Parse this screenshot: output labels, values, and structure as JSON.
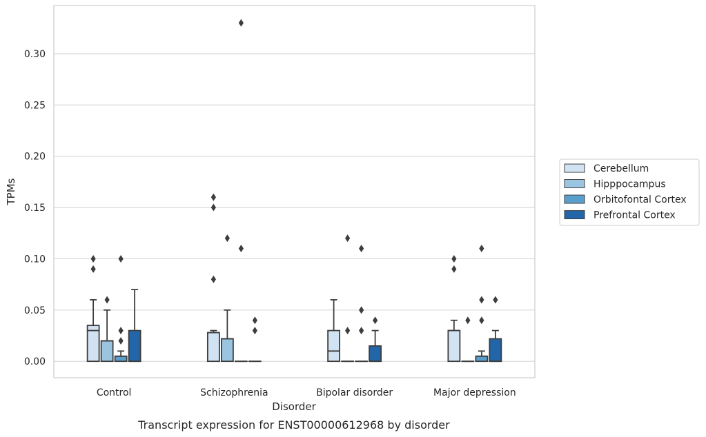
{
  "caption": "Transcript expression for ENST00000612968 by disorder",
  "chart_data": {
    "type": "boxplot",
    "xlabel": "Disorder",
    "ylabel": "TPMs",
    "ylim": [
      -0.016,
      0.347
    ],
    "yticks": [
      0.0,
      0.05,
      0.1,
      0.15,
      0.2,
      0.25,
      0.3
    ],
    "ytick_labels": [
      "0.00",
      "0.05",
      "0.10",
      "0.15",
      "0.20",
      "0.25",
      "0.30"
    ],
    "grid": "horizontal",
    "legend_position": "right",
    "categories": [
      "Control",
      "Schizophrenia",
      "Bipolar disorder",
      "Major depression"
    ],
    "series": [
      {
        "name": "Cerebellum",
        "color": "#d1e2f2",
        "boxes": [
          {
            "q1": 0.0,
            "median": 0.03,
            "q3": 0.035,
            "whisker_low": 0.0,
            "whisker_high": 0.06,
            "outliers": [
              0.09,
              0.1
            ]
          },
          {
            "q1": 0.0,
            "median": 0.028,
            "q3": 0.028,
            "whisker_low": 0.0,
            "whisker_high": 0.03,
            "outliers": [
              0.08,
              0.15,
              0.16
            ]
          },
          {
            "q1": 0.0,
            "median": 0.01,
            "q3": 0.03,
            "whisker_low": 0.0,
            "whisker_high": 0.06,
            "outliers": []
          },
          {
            "q1": 0.0,
            "median": 0.03,
            "q3": 0.03,
            "whisker_low": 0.0,
            "whisker_high": 0.04,
            "outliers": [
              0.09,
              0.1
            ]
          }
        ]
      },
      {
        "name": "Hipppocampus",
        "color": "#9ac4e0",
        "boxes": [
          {
            "q1": 0.0,
            "median": 0.02,
            "q3": 0.02,
            "whisker_low": 0.0,
            "whisker_high": 0.05,
            "outliers": [
              0.06
            ]
          },
          {
            "q1": 0.0,
            "median": 0.022,
            "q3": 0.022,
            "whisker_low": 0.0,
            "whisker_high": 0.05,
            "outliers": [
              0.12
            ]
          },
          {
            "q1": 0.0,
            "median": 0.0,
            "q3": 0.0,
            "whisker_low": 0.0,
            "whisker_high": 0.0,
            "outliers": [
              0.03,
              0.12
            ]
          },
          {
            "q1": 0.0,
            "median": 0.0,
            "q3": 0.0,
            "whisker_low": 0.0,
            "whisker_high": 0.0,
            "outliers": [
              0.04
            ]
          }
        ]
      },
      {
        "name": "Orbitofontal Cortex",
        "color": "#5a9fcb",
        "boxes": [
          {
            "q1": 0.0,
            "median": 0.005,
            "q3": 0.005,
            "whisker_low": 0.0,
            "whisker_high": 0.01,
            "outliers": [
              0.02,
              0.03,
              0.1
            ]
          },
          {
            "q1": 0.0,
            "median": 0.0,
            "q3": 0.0,
            "whisker_low": 0.0,
            "whisker_high": 0.0,
            "outliers": [
              0.11,
              0.33
            ]
          },
          {
            "q1": 0.0,
            "median": 0.0,
            "q3": 0.0,
            "whisker_low": 0.0,
            "whisker_high": 0.0,
            "outliers": [
              0.03,
              0.05,
              0.11
            ]
          },
          {
            "q1": 0.0,
            "median": 0.005,
            "q3": 0.005,
            "whisker_low": 0.0,
            "whisker_high": 0.01,
            "outliers": [
              0.04,
              0.06,
              0.11
            ]
          }
        ]
      },
      {
        "name": "Prefrontal Cortex",
        "color": "#2266a9",
        "boxes": [
          {
            "q1": 0.0,
            "median": 0.0,
            "q3": 0.03,
            "whisker_low": 0.0,
            "whisker_high": 0.07,
            "outliers": []
          },
          {
            "q1": 0.0,
            "median": 0.0,
            "q3": 0.0,
            "whisker_low": 0.0,
            "whisker_high": 0.0,
            "outliers": [
              0.03,
              0.04
            ]
          },
          {
            "q1": 0.0,
            "median": 0.0,
            "q3": 0.015,
            "whisker_low": 0.0,
            "whisker_high": 0.03,
            "outliers": [
              0.04
            ]
          },
          {
            "q1": 0.0,
            "median": 0.0,
            "q3": 0.022,
            "whisker_low": 0.0,
            "whisker_high": 0.03,
            "outliers": [
              0.06
            ]
          }
        ]
      }
    ]
  }
}
